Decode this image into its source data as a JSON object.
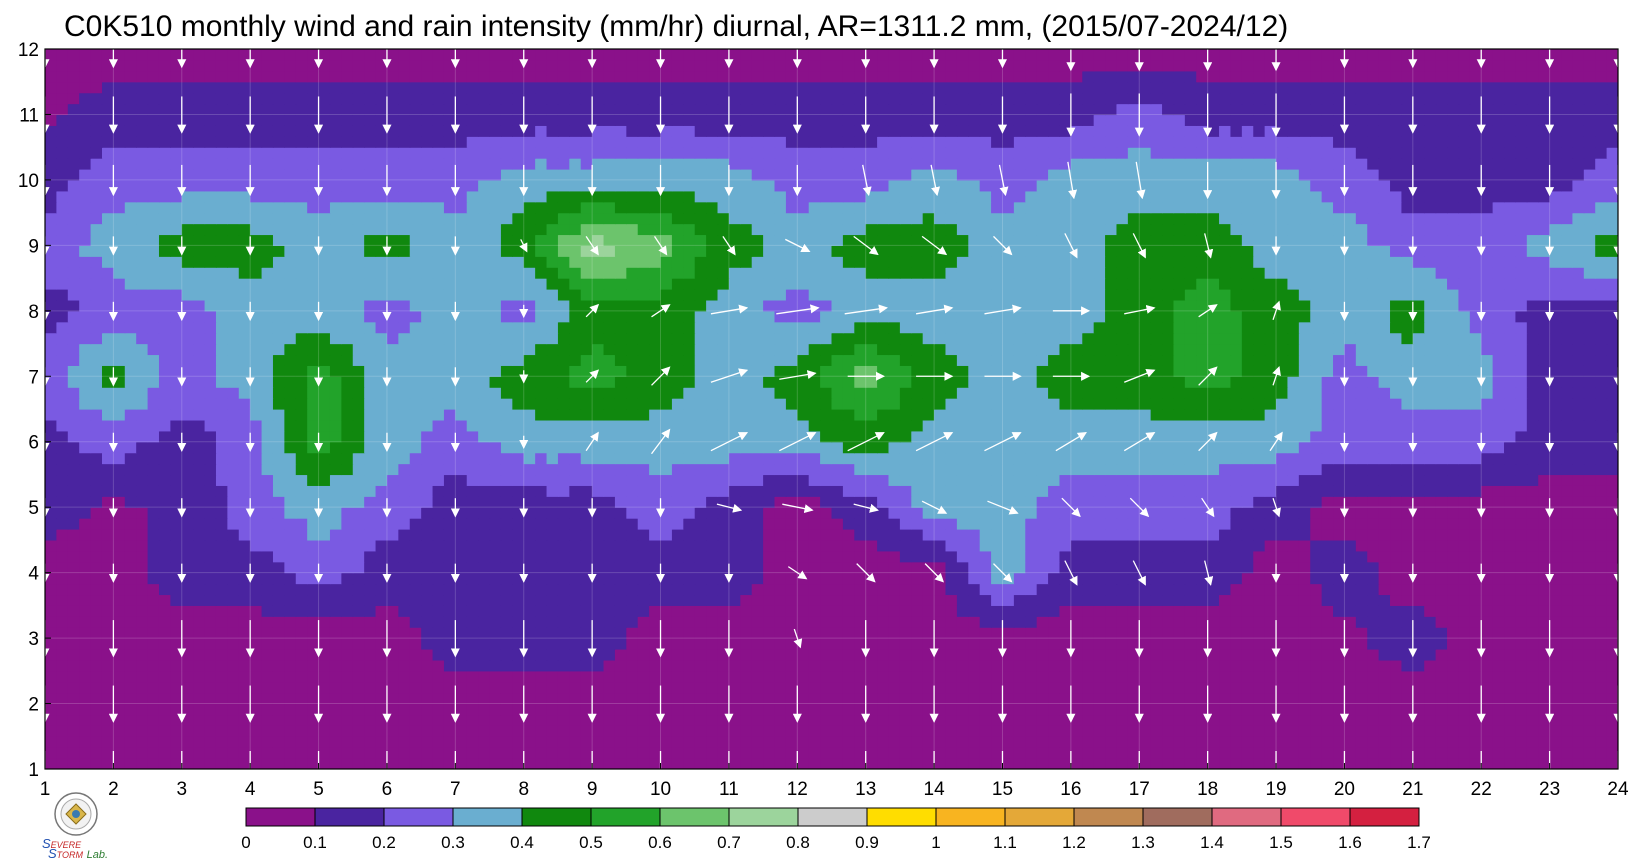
{
  "chart_data": {
    "type": "heatmap",
    "title": "C0K510 monthly wind and rain intensity (mm/hr) diurnal, AR=1311.2 mm, (2015/07-2024/12)",
    "xlabel": "",
    "ylabel": "",
    "x_ticks": [
      "1",
      "2",
      "3",
      "4",
      "5",
      "6",
      "7",
      "8",
      "9",
      "10",
      "11",
      "12",
      "13",
      "14",
      "15",
      "16",
      "17",
      "18",
      "19",
      "20",
      "21",
      "22",
      "23",
      "24"
    ],
    "y_ticks": [
      "1",
      "2",
      "3",
      "4",
      "5",
      "6",
      "7",
      "8",
      "9",
      "10",
      "11",
      "12"
    ],
    "xlim": [
      1,
      24
    ],
    "ylim": [
      1,
      12
    ],
    "colorbar": {
      "levels": [
        "0",
        "0.1",
        "0.2",
        "0.3",
        "0.4",
        "0.5",
        "0.6",
        "0.7",
        "0.8",
        "0.9",
        "1",
        "1.1",
        "1.2",
        "1.3",
        "1.4",
        "1.5",
        "1.6",
        "1.7"
      ],
      "colors": [
        "#8a118a",
        "#4a24a0",
        "#7a5ae2",
        "#6aaed0",
        "#10880e",
        "#22a32a",
        "#6cc46c",
        "#9cd49c",
        "#cccccc",
        "#ffdd00",
        "#f8b420",
        "#e4a838",
        "#c08850",
        "#a06c5e",
        "#e06a80",
        "#f04a6a",
        "#d42040"
      ]
    },
    "grid": true,
    "logo_text": "Severe Storm Lab.",
    "rain_intensity_grid": [
      [
        0.05,
        0.05,
        0.05,
        0.06,
        0.07,
        0.08,
        0.05,
        0.05,
        0.05,
        0.05,
        0.05,
        0.05,
        0.05,
        0.05,
        0.05,
        0.05,
        0.05,
        0.05,
        0.05,
        0.05,
        0.05,
        0.05,
        0.05,
        0.05
      ],
      [
        0.05,
        0.05,
        0.05,
        0.05,
        0.05,
        0.05,
        0.05,
        0.05,
        0.05,
        0.05,
        0.05,
        0.05,
        0.05,
        0.05,
        0.05,
        0.05,
        0.05,
        0.05,
        0.05,
        0.05,
        0.05,
        0.05,
        0.05,
        0.05
      ],
      [
        0.05,
        0.05,
        0.05,
        0.05,
        0.05,
        0.05,
        0.15,
        0.15,
        0.15,
        0.05,
        0.05,
        0.08,
        0.05,
        0.05,
        0.05,
        0.05,
        0.05,
        0.05,
        0.05,
        0.08,
        0.15,
        0.05,
        0.05,
        0.05
      ],
      [
        0.05,
        0.05,
        0.15,
        0.15,
        0.25,
        0.15,
        0.15,
        0.15,
        0.15,
        0.15,
        0.15,
        0.05,
        0.05,
        0.05,
        0.35,
        0.15,
        0.15,
        0.15,
        0.05,
        0.15,
        0.05,
        0.05,
        0.05,
        0.05
      ],
      [
        0.15,
        0.08,
        0.12,
        0.25,
        0.35,
        0.25,
        0.15,
        0.15,
        0.15,
        0.25,
        0.15,
        0.05,
        0.15,
        0.35,
        0.35,
        0.25,
        0.25,
        0.25,
        0.15,
        0.05,
        0.08,
        0.05,
        0.05,
        0.05
      ],
      [
        0.15,
        0.25,
        0.15,
        0.25,
        0.55,
        0.35,
        0.25,
        0.35,
        0.35,
        0.35,
        0.35,
        0.35,
        0.45,
        0.35,
        0.35,
        0.35,
        0.35,
        0.35,
        0.35,
        0.25,
        0.25,
        0.25,
        0.15,
        0.15
      ],
      [
        0.25,
        0.45,
        0.25,
        0.35,
        0.55,
        0.35,
        0.35,
        0.45,
        0.55,
        0.45,
        0.35,
        0.45,
        0.65,
        0.45,
        0.35,
        0.45,
        0.45,
        0.55,
        0.45,
        0.25,
        0.35,
        0.35,
        0.15,
        0.15
      ],
      [
        0.15,
        0.25,
        0.25,
        0.35,
        0.35,
        0.25,
        0.35,
        0.25,
        0.45,
        0.45,
        0.35,
        0.25,
        0.35,
        0.35,
        0.35,
        0.35,
        0.45,
        0.55,
        0.45,
        0.35,
        0.45,
        0.25,
        0.15,
        0.15
      ],
      [
        0.25,
        0.35,
        0.45,
        0.45,
        0.35,
        0.45,
        0.35,
        0.45,
        0.75,
        0.65,
        0.45,
        0.35,
        0.45,
        0.45,
        0.35,
        0.35,
        0.45,
        0.45,
        0.35,
        0.35,
        0.25,
        0.25,
        0.35,
        0.45
      ],
      [
        0.15,
        0.25,
        0.25,
        0.25,
        0.25,
        0.25,
        0.25,
        0.35,
        0.35,
        0.35,
        0.35,
        0.25,
        0.25,
        0.35,
        0.25,
        0.35,
        0.35,
        0.35,
        0.35,
        0.25,
        0.15,
        0.15,
        0.15,
        0.25
      ],
      [
        0.08,
        0.15,
        0.15,
        0.15,
        0.15,
        0.15,
        0.15,
        0.15,
        0.15,
        0.15,
        0.15,
        0.15,
        0.15,
        0.15,
        0.15,
        0.15,
        0.25,
        0.15,
        0.15,
        0.15,
        0.15,
        0.15,
        0.15,
        0.15
      ],
      [
        0.05,
        0.05,
        0.05,
        0.05,
        0.05,
        0.05,
        0.05,
        0.05,
        0.05,
        0.05,
        0.05,
        0.05,
        0.05,
        0.05,
        0.05,
        0.05,
        0.05,
        0.05,
        0.05,
        0.05,
        0.05,
        0.05,
        0.05,
        0.05
      ]
    ],
    "wind_vectors_note": "arrows drawn at every (hour, month) node; u,v in arbitrary wind units",
    "wind_u": [
      [
        0.0,
        0.0,
        0.0,
        0.0,
        0.0,
        0.0,
        0.0,
        0.0,
        0.0,
        0.0,
        0.0,
        0.0,
        0.0,
        0.0,
        0.0,
        0.0,
        0.0,
        0.0,
        0.0,
        0.0,
        0.0,
        0.0,
        0.0,
        0.0
      ],
      [
        0.0,
        0.0,
        0.0,
        0.0,
        0.0,
        0.0,
        0.0,
        0.0,
        0.0,
        0.0,
        0.0,
        0.0,
        0.0,
        0.0,
        0.0,
        0.0,
        0.0,
        0.0,
        0.0,
        0.0,
        0.0,
        0.0,
        0.0,
        0.0
      ],
      [
        0.0,
        0.0,
        0.0,
        0.0,
        0.0,
        0.0,
        0.0,
        0.0,
        0.0,
        0.0,
        0.0,
        0.1,
        0.0,
        0.0,
        0.0,
        0.0,
        0.0,
        0.0,
        0.0,
        0.0,
        0.0,
        0.0,
        0.0,
        0.0
      ],
      [
        0.0,
        0.0,
        0.0,
        0.0,
        0.0,
        0.0,
        0.0,
        0.0,
        0.0,
        0.0,
        0.0,
        0.3,
        0.3,
        0.3,
        0.3,
        0.2,
        0.2,
        0.1,
        0.0,
        0.0,
        0.0,
        0.0,
        0.0,
        0.0
      ],
      [
        0.0,
        0.0,
        0.0,
        0.0,
        0.0,
        0.0,
        0.0,
        0.0,
        0.0,
        0.0,
        0.4,
        0.5,
        0.4,
        0.4,
        0.5,
        0.3,
        0.3,
        0.2,
        0.1,
        0.0,
        0.0,
        0.0,
        0.0,
        0.0
      ],
      [
        0.0,
        0.0,
        0.0,
        0.0,
        0.0,
        0.0,
        0.0,
        0.0,
        0.2,
        0.3,
        0.6,
        0.6,
        0.6,
        0.6,
        0.6,
        0.5,
        0.5,
        0.3,
        0.2,
        0.0,
        0.0,
        0.0,
        0.0,
        0.0
      ],
      [
        0.0,
        0.0,
        0.0,
        0.0,
        0.0,
        0.0,
        0.0,
        0.0,
        0.2,
        0.3,
        0.6,
        0.6,
        0.6,
        0.6,
        0.6,
        0.6,
        0.5,
        0.3,
        0.1,
        0.0,
        0.0,
        0.0,
        0.0,
        0.0
      ],
      [
        0.0,
        0.0,
        0.0,
        0.0,
        0.0,
        0.0,
        0.0,
        0.0,
        0.2,
        0.3,
        0.6,
        0.7,
        0.7,
        0.6,
        0.6,
        0.6,
        0.5,
        0.3,
        0.1,
        0.0,
        0.0,
        0.0,
        0.0,
        0.0
      ],
      [
        0.0,
        0.0,
        0.0,
        0.0,
        0.0,
        0.0,
        0.0,
        0.1,
        0.2,
        0.2,
        0.2,
        0.4,
        0.4,
        0.4,
        0.3,
        0.2,
        0.2,
        0.1,
        0.0,
        0.0,
        0.0,
        0.0,
        0.0,
        0.0
      ],
      [
        0.0,
        0.0,
        0.0,
        0.0,
        0.0,
        0.0,
        0.0,
        0.0,
        0.0,
        0.0,
        0.0,
        0.0,
        0.1,
        0.1,
        0.1,
        0.1,
        0.1,
        0.0,
        0.0,
        0.0,
        0.0,
        0.0,
        0.0,
        0.0
      ],
      [
        0.0,
        0.0,
        0.0,
        0.0,
        0.0,
        0.0,
        0.0,
        0.0,
        0.0,
        0.0,
        0.0,
        0.0,
        0.0,
        0.0,
        0.0,
        0.0,
        0.0,
        0.0,
        0.0,
        0.0,
        0.0,
        0.0,
        0.0,
        0.0
      ],
      [
        0.0,
        0.0,
        0.0,
        0.0,
        0.0,
        0.0,
        0.0,
        0.0,
        0.0,
        0.0,
        0.0,
        0.0,
        0.0,
        0.0,
        0.0,
        0.0,
        0.0,
        0.0,
        0.0,
        0.0,
        0.0,
        0.0,
        0.0,
        0.0
      ]
    ],
    "wind_v": [
      [
        -0.6,
        -0.6,
        -0.6,
        -0.6,
        -0.6,
        -0.6,
        -0.6,
        -0.6,
        -0.6,
        -0.6,
        -0.6,
        -0.6,
        -0.6,
        -0.6,
        -0.6,
        -0.6,
        -0.6,
        -0.6,
        -0.6,
        -0.6,
        -0.6,
        -0.6,
        -0.6,
        -0.6
      ],
      [
        -0.6,
        -0.6,
        -0.6,
        -0.6,
        -0.6,
        -0.6,
        -0.6,
        -0.6,
        -0.6,
        -0.6,
        -0.6,
        -0.6,
        -0.6,
        -0.6,
        -0.6,
        -0.6,
        -0.6,
        -0.6,
        -0.6,
        -0.6,
        -0.6,
        -0.6,
        -0.6,
        -0.6
      ],
      [
        -0.6,
        -0.6,
        -0.6,
        -0.6,
        -0.6,
        -0.6,
        -0.6,
        -0.6,
        -0.6,
        -0.6,
        -0.6,
        -0.3,
        -0.6,
        -0.6,
        -0.6,
        -0.6,
        -0.6,
        -0.6,
        -0.6,
        -0.6,
        -0.6,
        -0.6,
        -0.6,
        -0.6
      ],
      [
        -0.3,
        -0.3,
        -0.3,
        -0.3,
        -0.3,
        -0.3,
        -0.3,
        -0.3,
        -0.3,
        -0.3,
        -0.3,
        -0.2,
        -0.3,
        -0.3,
        -0.3,
        -0.4,
        -0.4,
        -0.4,
        -0.3,
        -0.3,
        -0.3,
        -0.3,
        -0.3,
        -0.3
      ],
      [
        -0.3,
        -0.3,
        -0.3,
        -0.3,
        -0.3,
        -0.3,
        -0.3,
        -0.3,
        -0.3,
        -0.3,
        -0.1,
        -0.1,
        -0.1,
        -0.2,
        -0.2,
        -0.3,
        -0.3,
        -0.3,
        -0.3,
        -0.3,
        -0.3,
        -0.3,
        -0.3,
        -0.3
      ],
      [
        -0.3,
        -0.3,
        -0.3,
        -0.3,
        -0.3,
        -0.3,
        -0.3,
        -0.2,
        0.3,
        0.4,
        0.3,
        0.3,
        0.3,
        0.3,
        0.3,
        0.3,
        0.3,
        0.3,
        0.3,
        -0.3,
        -0.3,
        -0.3,
        -0.3,
        -0.3
      ],
      [
        -0.3,
        -0.3,
        -0.3,
        -0.3,
        -0.3,
        -0.3,
        -0.3,
        -0.2,
        0.2,
        0.3,
        0.2,
        0.1,
        0.0,
        0.0,
        0.0,
        0.0,
        0.2,
        0.3,
        0.3,
        -0.3,
        -0.3,
        -0.3,
        -0.3,
        -0.3
      ],
      [
        -0.3,
        -0.3,
        -0.3,
        -0.3,
        -0.3,
        -0.3,
        -0.3,
        -0.2,
        0.2,
        0.2,
        0.1,
        0.1,
        0.1,
        0.1,
        0.1,
        0.0,
        0.1,
        0.2,
        0.3,
        -0.3,
        -0.3,
        -0.3,
        -0.3,
        -0.3
      ],
      [
        -0.3,
        -0.3,
        -0.3,
        -0.3,
        -0.3,
        -0.3,
        -0.3,
        -0.2,
        -0.3,
        -0.3,
        -0.3,
        -0.2,
        -0.3,
        -0.3,
        -0.3,
        -0.4,
        -0.4,
        -0.4,
        -0.3,
        -0.3,
        -0.3,
        -0.3,
        -0.3,
        -0.3
      ],
      [
        -0.5,
        -0.5,
        -0.5,
        -0.5,
        -0.5,
        -0.5,
        -0.5,
        -0.5,
        -0.5,
        -0.5,
        -0.5,
        -0.5,
        -0.5,
        -0.5,
        -0.5,
        -0.6,
        -0.6,
        -0.6,
        -0.6,
        -0.5,
        -0.5,
        -0.5,
        -0.5,
        -0.5
      ],
      [
        -0.6,
        -0.6,
        -0.6,
        -0.6,
        -0.6,
        -0.6,
        -0.6,
        -0.6,
        -0.6,
        -0.6,
        -0.6,
        -0.6,
        -0.6,
        -0.6,
        -0.6,
        -0.7,
        -0.7,
        -0.7,
        -0.7,
        -0.6,
        -0.6,
        -0.6,
        -0.6,
        -0.6
      ],
      [
        -0.6,
        -0.6,
        -0.6,
        -0.6,
        -0.6,
        -0.6,
        -0.6,
        -0.6,
        -0.6,
        -0.6,
        -0.6,
        -0.6,
        -0.6,
        -0.6,
        -0.6,
        -0.7,
        -0.7,
        -0.7,
        -0.7,
        -0.6,
        -0.6,
        -0.6,
        -0.6,
        -0.6
      ]
    ]
  }
}
